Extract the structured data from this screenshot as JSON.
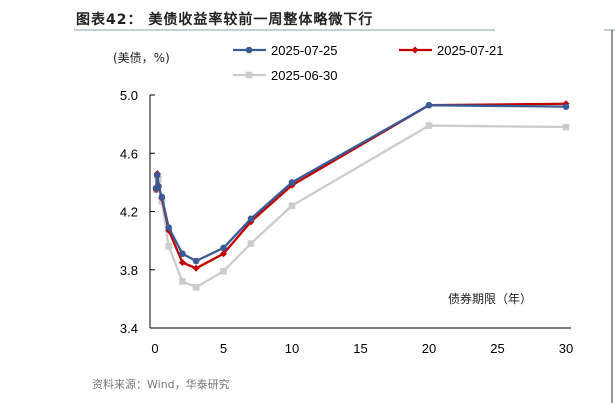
{
  "title": "图表42：  美债收益率较前一周整体略微下行",
  "source": "资料来源：Wind，华泰研究",
  "chart_data": {
    "type": "line",
    "ylabel": "(美债，%)",
    "xlabel": "债券期限（年）",
    "ylim": [
      3.4,
      5.0
    ],
    "xlim": [
      0,
      30
    ],
    "yticks": [
      "3.4",
      "3.8",
      "4.2",
      "4.6",
      "5.0"
    ],
    "xticks": [
      "0",
      "5",
      "10",
      "15",
      "20",
      "25",
      "30"
    ],
    "x": [
      0.083,
      0.167,
      0.25,
      0.5,
      1,
      2,
      3,
      5,
      7,
      10,
      20,
      30
    ],
    "legend_position": "top",
    "series": [
      {
        "name": "2025-07-25",
        "color": "#3a5a96",
        "marker": "circle",
        "values": [
          4.36,
          4.45,
          4.37,
          4.3,
          4.09,
          3.91,
          3.86,
          3.95,
          4.15,
          4.4,
          4.93,
          4.92
        ]
      },
      {
        "name": "2025-07-21",
        "color": "#c00000",
        "marker": "diamond",
        "values": [
          4.35,
          4.46,
          4.38,
          4.29,
          4.07,
          3.85,
          3.81,
          3.91,
          4.13,
          4.38,
          4.93,
          4.94
        ]
      },
      {
        "name": "2025-06-30",
        "color": "#cccccc",
        "marker": "square",
        "values": [
          4.35,
          4.44,
          4.42,
          4.27,
          3.96,
          3.72,
          3.68,
          3.79,
          3.98,
          4.24,
          4.79,
          4.78
        ]
      }
    ]
  }
}
